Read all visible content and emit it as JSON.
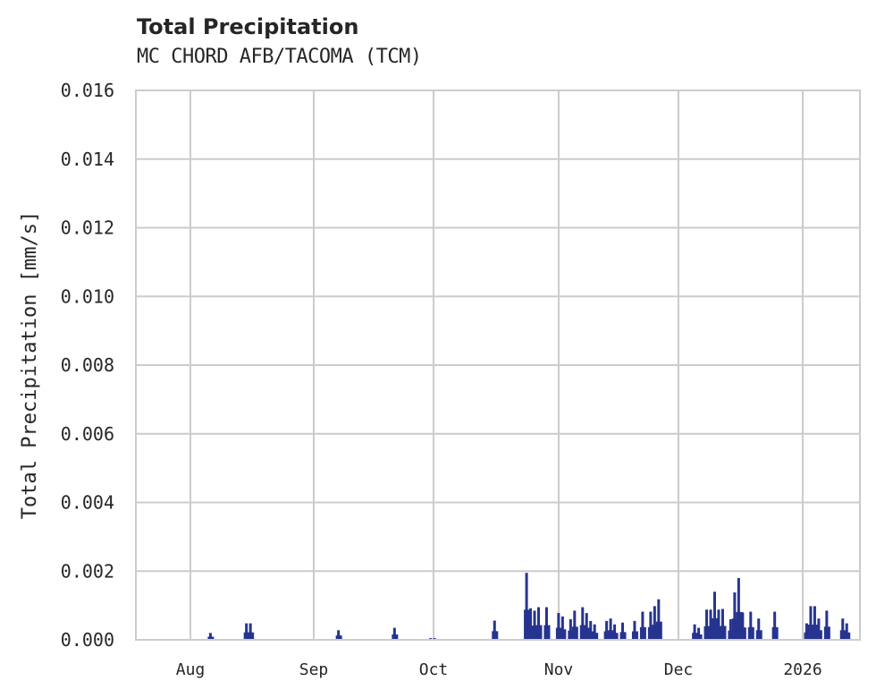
{
  "header": {
    "title": "Total Precipitation",
    "subtitle": "MC CHORD AFB/TACOMA (TCM)"
  },
  "colors": {
    "series": "#26348f",
    "grid": "#cccccc",
    "text": "#262626",
    "background": "#ffffff"
  },
  "chart_data": {
    "type": "area",
    "title": "Total Precipitation",
    "subtitle": "MC CHORD AFB/TACOMA (TCM)",
    "xlabel": "",
    "ylabel": "Total Precipitation [mm/s]",
    "ylim": [
      0,
      0.016
    ],
    "yticks": [
      "0.000",
      "0.002",
      "0.004",
      "0.006",
      "0.008",
      "0.010",
      "0.012",
      "0.014",
      "0.016"
    ],
    "xticks": [
      "Aug",
      "Sep",
      "Oct",
      "Nov",
      "Dec",
      "2026"
    ],
    "grid": true,
    "legend": null,
    "series": [
      {
        "name": "Total Precipitation",
        "x": [
          "2025-08-06",
          "2025-08-15",
          "2025-08-16",
          "2025-09-07",
          "2025-09-21",
          "2025-09-30",
          "2025-10-01",
          "2025-10-16",
          "2025-10-24",
          "2025-10-25",
          "2025-10-26",
          "2025-10-27",
          "2025-10-29",
          "2025-11-01",
          "2025-11-02",
          "2025-11-04",
          "2025-11-05",
          "2025-11-07",
          "2025-11-08",
          "2025-11-09",
          "2025-11-10",
          "2025-11-13",
          "2025-11-14",
          "2025-11-15",
          "2025-11-17",
          "2025-11-20",
          "2025-11-22",
          "2025-11-24",
          "2025-11-25",
          "2025-11-26",
          "2025-12-05",
          "2025-12-06",
          "2025-12-08",
          "2025-12-09",
          "2025-12-10",
          "2025-12-11",
          "2025-12-12",
          "2025-12-14",
          "2025-12-15",
          "2025-12-16",
          "2025-12-17",
          "2025-12-19",
          "2025-12-21",
          "2025-12-25",
          "2026-01-02",
          "2026-01-03",
          "2026-01-04",
          "2026-01-05",
          "2026-01-07",
          "2026-01-11",
          "2026-01-12"
        ],
        "values": [
          0.0002,
          0.00048,
          0.00048,
          0.00028,
          0.00035,
          5e-05,
          5e-05,
          0.00056,
          0.00195,
          0.00092,
          0.00085,
          0.00095,
          0.00095,
          0.00078,
          0.00068,
          0.0006,
          0.00085,
          0.00095,
          0.00078,
          0.00055,
          0.00045,
          0.00055,
          0.00062,
          0.00045,
          0.0005,
          0.00055,
          0.00082,
          0.00082,
          0.00098,
          0.00118,
          0.00045,
          0.00035,
          0.00088,
          0.00088,
          0.0014,
          0.00088,
          0.0009,
          0.0006,
          0.00138,
          0.0018,
          0.0008,
          0.00082,
          0.00062,
          0.00082,
          0.00048,
          0.00098,
          0.00098,
          0.00062,
          0.00085,
          0.00062,
          0.00048
        ]
      }
    ]
  }
}
